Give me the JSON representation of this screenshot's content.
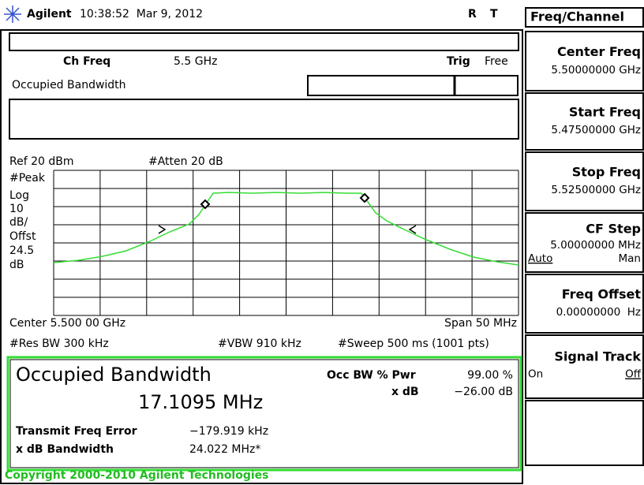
{
  "status": {
    "brand": "Agilent",
    "time": "10:38:52  Mar 9, 2012",
    "flags": [
      "R",
      "T"
    ]
  },
  "meas": {
    "ch_freq_label": "Ch Freq",
    "ch_freq": "5.5 GHz",
    "trig_label": "Trig",
    "trig": "Free",
    "name": "Occupied Bandwidth"
  },
  "graph": {
    "ref": "Ref 20 dBm",
    "atten": "#Atten 20 dB",
    "scale": [
      "#Peak",
      "Log",
      "10",
      "dB/",
      "Offst",
      "24.5",
      "dB"
    ],
    "center": "Center 5.500 00 GHz",
    "span": "Span 50 MHz",
    "res_bw": "#Res BW 300 kHz",
    "vbw": "#VBW 910 kHz",
    "sweep": "#Sweep 500 ms (1001 pts)"
  },
  "result": {
    "title": "Occupied Bandwidth",
    "bandwidth": "17.1095 MHz",
    "occ_pwr_label": "Occ BW % Pwr",
    "occ_pwr": "99.00 %",
    "xdb_label": "x dB",
    "xdb": "−26.00 dB",
    "freq_err_label": "Transmit Freq Error",
    "freq_err": "−179.919 kHz",
    "xdb_bw_label": "x dB Bandwidth",
    "xdb_bw": "24.022 MHz*"
  },
  "menu": {
    "title": "Freq/Channel",
    "keys": [
      {
        "label": "Center Freq",
        "value": "5.50000000 GHz"
      },
      {
        "label": "Start Freq",
        "value": "5.47500000 GHz"
      },
      {
        "label": "Stop Freq",
        "value": "5.52500000 GHz"
      },
      {
        "label": "CF Step",
        "value": "5.00000000 MHz",
        "options": [
          "Auto",
          "Man"
        ]
      },
      {
        "label": "Freq Offset",
        "value": "0.00000000  Hz"
      },
      {
        "label": "Signal Track",
        "options": [
          "On",
          "Off"
        ]
      }
    ]
  },
  "footer": "Copyright 2000-2010 Agilent Technologies"
}
